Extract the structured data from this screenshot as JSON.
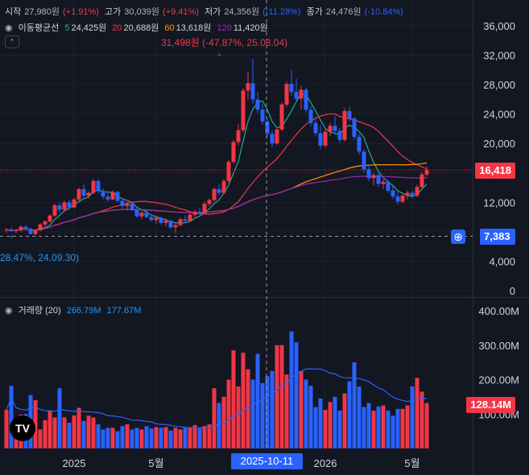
{
  "ohlc_legend": {
    "open_label": "시작",
    "open": "27,980원",
    "open_chg": "(+1.91%)",
    "high_label": "고가",
    "high": "30,039원",
    "high_chg": "(+9.41%)",
    "low_label": "저가",
    "low": "24,356원",
    "low_chg": "(-11.28%)",
    "close_label": "종가",
    "close": "24,476원",
    "close_chg": "(-10.84%)"
  },
  "ma_legend": {
    "title": "이동평균선",
    "p5": "5",
    "v5": "24,425원",
    "p20": "20",
    "v20": "20,688원",
    "p60": "60",
    "v60": "13,618원",
    "p120": "120",
    "v120": "11,420원"
  },
  "volume_legend": {
    "title": "거래량 (20)",
    "v1": "266.79M",
    "v2": "177.67M"
  },
  "annotations": {
    "high_marker": "31,498원 (-47.87%, 25.08.04)",
    "low_marker": "28.47%, 24.09.30)"
  },
  "price_tags": {
    "current": "16,418",
    "crosshair": "7,383",
    "volume": "128.14M",
    "crosshair_date": "2025-10-11"
  },
  "colors": {
    "up": "#f23645",
    "down": "#2962ff",
    "ma5": "#22ab94",
    "ma20": "#f23645",
    "ma60": "#ff9800",
    "ma120": "#9c27b0",
    "vol_ma": "#2962ff"
  },
  "chart_data": {
    "type": "candlestick",
    "price_axis": {
      "ticks": [
        "36,000",
        "32,000",
        "28,000",
        "24,000",
        "20,000",
        "16,000",
        "12,000",
        "8,000",
        "4,000",
        "0"
      ],
      "ylim": [
        0,
        36000
      ]
    },
    "volume_axis": {
      "ticks": [
        "400.00M",
        "300.00M",
        "200.00M",
        "100.00M"
      ],
      "ylim": [
        0,
        400
      ]
    },
    "time_axis": {
      "ticks": [
        "2025",
        "5월",
        "2026",
        "5월"
      ]
    },
    "candles": [
      [
        8200,
        8500,
        7900,
        8300
      ],
      [
        8300,
        8600,
        8000,
        8100
      ],
      [
        8100,
        8400,
        7800,
        8200
      ],
      [
        8200,
        8800,
        8000,
        8700
      ],
      [
        8700,
        8900,
        8200,
        8400
      ],
      [
        8400,
        8600,
        7600,
        7700
      ],
      [
        7700,
        8300,
        7500,
        8200
      ],
      [
        8200,
        9200,
        8100,
        9000
      ],
      [
        9000,
        9600,
        8700,
        9400
      ],
      [
        9400,
        10400,
        9200,
        10200
      ],
      [
        10200,
        11800,
        10000,
        11600
      ],
      [
        11600,
        12000,
        10600,
        11000
      ],
      [
        11000,
        12200,
        10800,
        12000
      ],
      [
        12000,
        12300,
        11000,
        11300
      ],
      [
        11300,
        12600,
        11200,
        12400
      ],
      [
        12400,
        14000,
        12200,
        13800
      ],
      [
        13800,
        14400,
        12600,
        12900
      ],
      [
        12900,
        13500,
        12500,
        13300
      ],
      [
        13300,
        15200,
        13100,
        14900
      ],
      [
        14900,
        15200,
        13200,
        13500
      ],
      [
        13500,
        13900,
        12400,
        12800
      ],
      [
        12800,
        13200,
        12100,
        12400
      ],
      [
        12400,
        13600,
        12300,
        13400
      ],
      [
        13400,
        13600,
        12000,
        12200
      ],
      [
        12200,
        12600,
        11200,
        11500
      ],
      [
        11500,
        12100,
        10900,
        11800
      ],
      [
        11800,
        12000,
        10800,
        11000
      ],
      [
        11000,
        11300,
        9900,
        10100
      ],
      [
        10100,
        10800,
        9700,
        10600
      ],
      [
        10600,
        11000,
        9800,
        10000
      ],
      [
        10000,
        10400,
        9400,
        9600
      ],
      [
        9600,
        10200,
        9100,
        9900
      ],
      [
        9900,
        10000,
        9000,
        9200
      ],
      [
        9200,
        9800,
        8700,
        9500
      ],
      [
        9500,
        9600,
        8400,
        8600
      ],
      [
        8600,
        9200,
        7800,
        8900
      ],
      [
        8900,
        9900,
        8800,
        9700
      ],
      [
        9700,
        10200,
        9300,
        9500
      ],
      [
        9500,
        10500,
        9400,
        10300
      ],
      [
        10300,
        11000,
        10000,
        10700
      ],
      [
        10700,
        11200,
        10300,
        10500
      ],
      [
        10500,
        12100,
        10400,
        11800
      ],
      [
        11800,
        12500,
        11500,
        12300
      ],
      [
        12300,
        14000,
        12100,
        13800
      ],
      [
        13800,
        14500,
        13000,
        13300
      ],
      [
        13300,
        15200,
        13100,
        14900
      ],
      [
        14900,
        17800,
        14600,
        17500
      ],
      [
        17500,
        20500,
        17200,
        20200
      ],
      [
        20200,
        22600,
        19800,
        21800
      ],
      [
        21800,
        27500,
        21500,
        27200
      ],
      [
        27200,
        29800,
        26000,
        28200
      ],
      [
        28200,
        31500,
        25400,
        26000
      ],
      [
        26000,
        27000,
        24100,
        24600
      ],
      [
        24600,
        25400,
        22600,
        23000
      ],
      [
        23000,
        23400,
        20900,
        21300
      ],
      [
        21300,
        21800,
        19500,
        20000
      ],
      [
        20000,
        22200,
        19800,
        21900
      ],
      [
        21900,
        25600,
        21700,
        25300
      ],
      [
        25300,
        28400,
        25000,
        28100
      ],
      [
        28100,
        30000,
        26500,
        27000
      ],
      [
        27000,
        28800,
        25600,
        26100
      ],
      [
        26100,
        27800,
        24600,
        27300
      ],
      [
        27300,
        27600,
        24200,
        24600
      ],
      [
        24600,
        25100,
        22300,
        22800
      ],
      [
        22800,
        23400,
        21000,
        21400
      ],
      [
        21400,
        22500,
        19200,
        19700
      ],
      [
        19700,
        21900,
        19500,
        21600
      ],
      [
        21600,
        22800,
        21000,
        22400
      ],
      [
        22400,
        23700,
        21200,
        21700
      ],
      [
        21700,
        22100,
        20100,
        20500
      ],
      [
        20500,
        24800,
        20300,
        24400
      ],
      [
        24400,
        25000,
        23000,
        23400
      ],
      [
        23400,
        23600,
        20500,
        20900
      ],
      [
        20900,
        21300,
        18500,
        18900
      ],
      [
        18900,
        19200,
        16100,
        16500
      ],
      [
        16500,
        17200,
        14900,
        15300
      ],
      [
        15300,
        16000,
        14300,
        15700
      ],
      [
        15700,
        15900,
        14100,
        14500
      ],
      [
        14500,
        15100,
        13800,
        14800
      ],
      [
        14800,
        15000,
        13300,
        13600
      ],
      [
        13600,
        14200,
        12500,
        12800
      ],
      [
        12800,
        13400,
        11700,
        12100
      ],
      [
        12100,
        13100,
        11900,
        12900
      ],
      [
        12900,
        13600,
        12400,
        13300
      ],
      [
        13300,
        13600,
        12600,
        12900
      ],
      [
        12900,
        14400,
        12700,
        14100
      ],
      [
        14100,
        16100,
        13900,
        15800
      ],
      [
        15800,
        16900,
        15500,
        16400
      ]
    ],
    "volume": [
      112,
      182,
      62,
      98,
      100,
      155,
      140,
      55,
      82,
      110,
      90,
      175,
      90,
      75,
      96,
      118,
      80,
      95,
      90,
      70,
      55,
      60,
      60,
      50,
      65,
      70,
      55,
      60,
      55,
      65,
      58,
      62,
      60,
      62,
      52,
      60,
      55,
      60,
      62,
      68,
      60,
      65,
      70,
      175,
      132,
      150,
      200,
      285,
      180,
      278,
      230,
      200,
      275,
      190,
      210,
      225,
      300,
      300,
      215,
      340,
      308,
      225,
      200,
      182,
      120,
      145,
      112,
      135,
      150,
      110,
      160,
      195,
      250,
      180,
      120,
      132,
      110,
      122,
      125,
      110,
      95,
      115,
      115,
      125,
      180,
      205,
      165,
      132
    ]
  }
}
